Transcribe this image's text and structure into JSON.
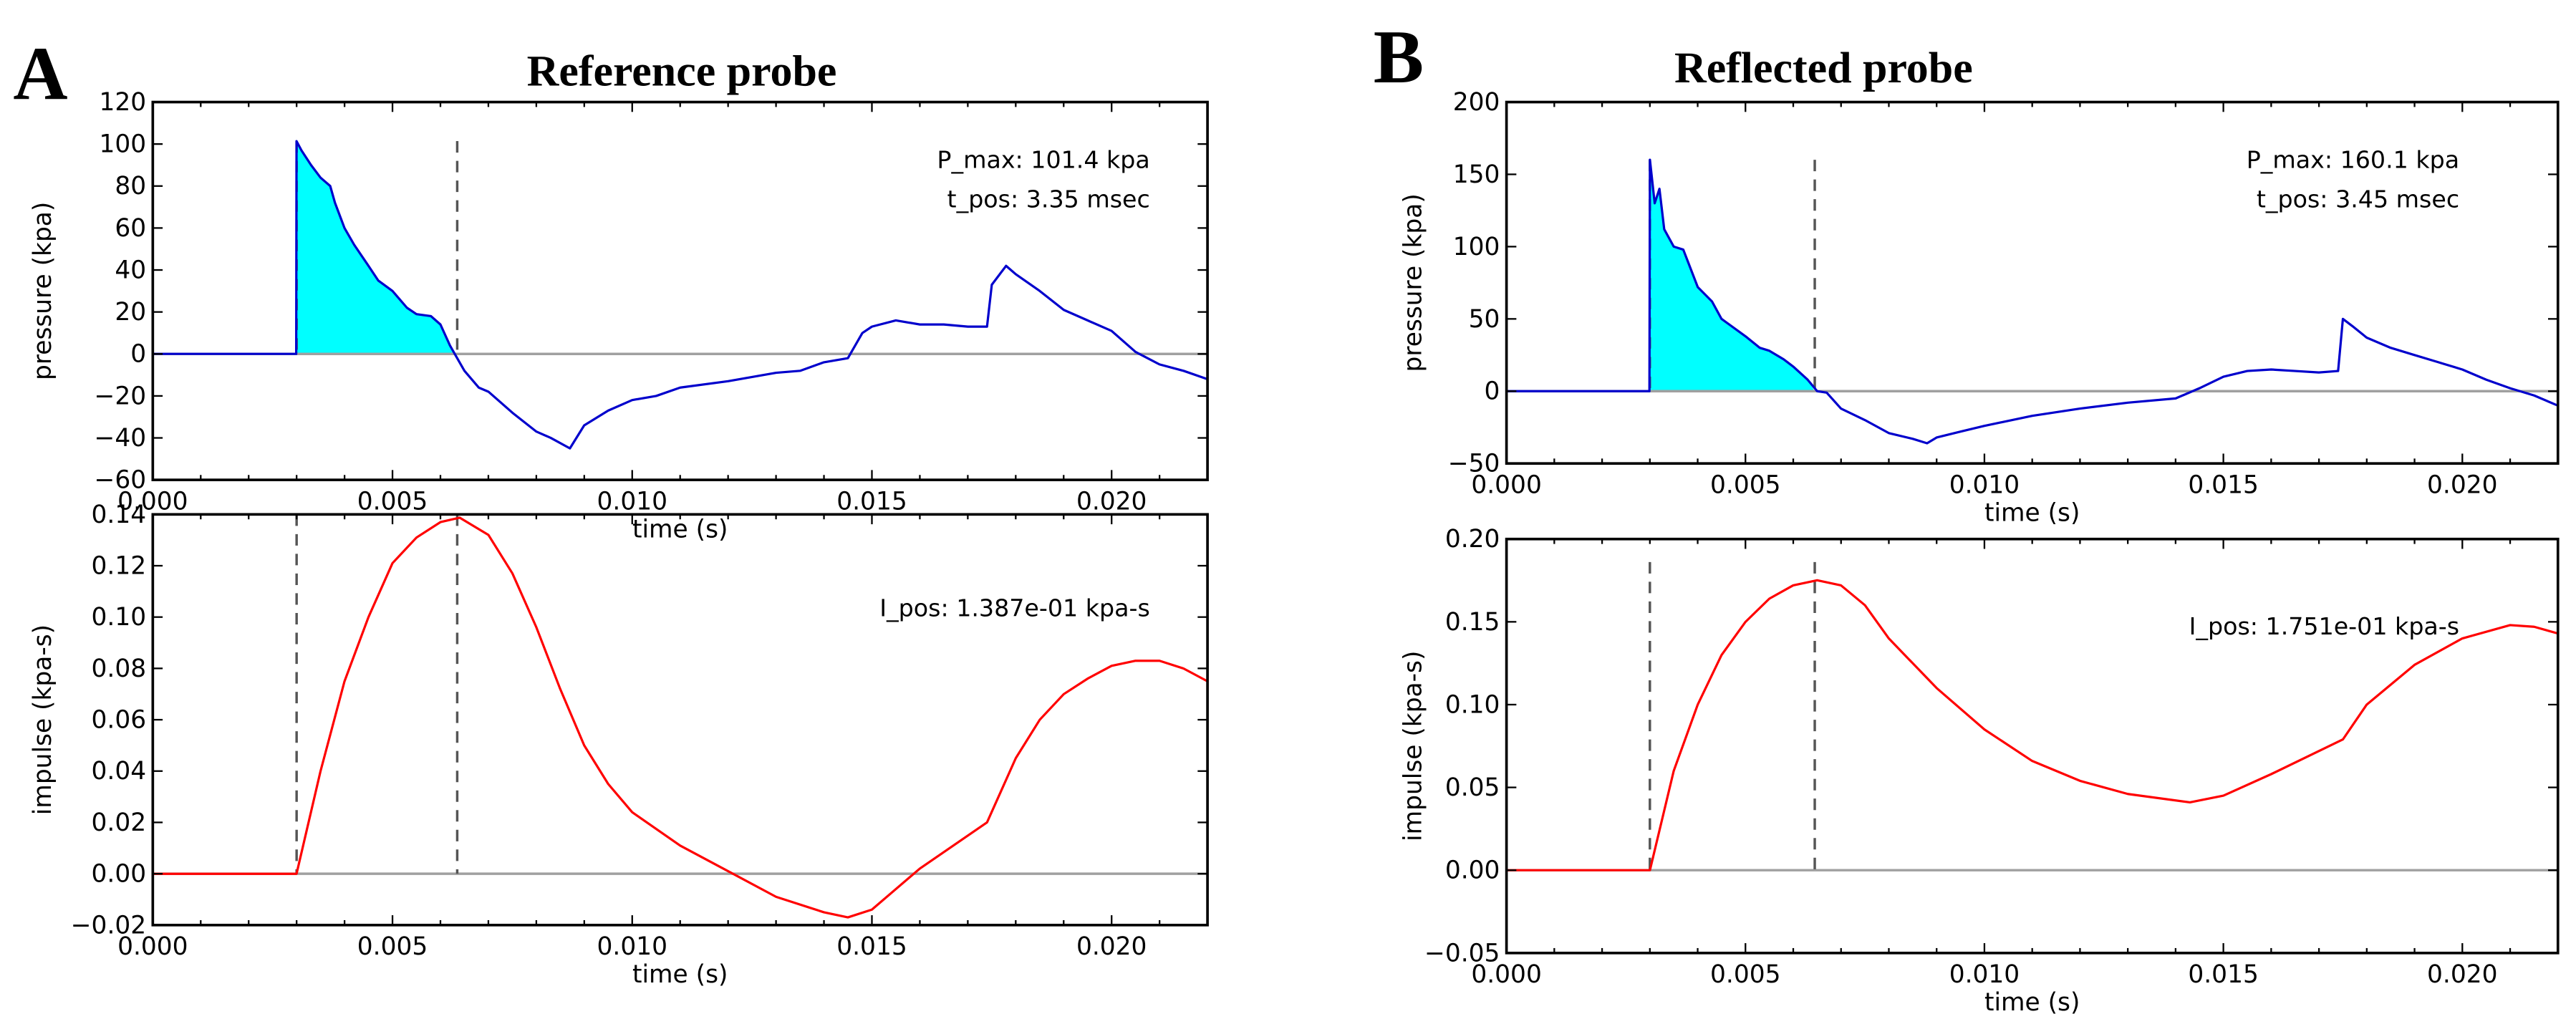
{
  "panels": [
    {
      "letter": "A",
      "title": "Reference probe",
      "colors": {
        "pressure": "#0000cc",
        "fill": "#00ffff",
        "impulse": "#ff0000",
        "zero": "#a0a0a0",
        "dashed": "#555555"
      },
      "dashed_x": [
        0.003,
        0.00635
      ],
      "chart_data": [
        {
          "type": "line",
          "xlabel": "time (s)",
          "ylabel": "pressure (kpa)",
          "xlim": [
            0,
            0.022
          ],
          "ylim": [
            -60,
            120
          ],
          "xticks": [
            "0.000",
            "0.005",
            "0.010",
            "0.015",
            "0.020"
          ],
          "yticks": [
            "−60",
            "−40",
            "−20",
            "0",
            "20",
            "40",
            "60",
            "80",
            "100",
            "120"
          ],
          "yticks_values": [
            -60,
            -40,
            -20,
            0,
            20,
            40,
            60,
            80,
            100,
            120
          ],
          "annotations": [
            "P_max: 101.4 kpa",
            "t_pos: 3.35 msec"
          ],
          "fill_range": [
            0.003,
            0.00635
          ],
          "points": [
            [
              0,
              0
            ],
            [
              0.00299,
              0
            ],
            [
              0.003,
              101.4
            ],
            [
              0.0031,
              97
            ],
            [
              0.0033,
              90
            ],
            [
              0.0035,
              84
            ],
            [
              0.0037,
              80
            ],
            [
              0.0038,
              72
            ],
            [
              0.004,
              60
            ],
            [
              0.0042,
              52
            ],
            [
              0.0045,
              42
            ],
            [
              0.0047,
              35
            ],
            [
              0.005,
              30
            ],
            [
              0.0053,
              22
            ],
            [
              0.0055,
              19
            ],
            [
              0.0058,
              18
            ],
            [
              0.006,
              14
            ],
            [
              0.0062,
              4
            ],
            [
              0.0063,
              0
            ],
            [
              0.0065,
              -8
            ],
            [
              0.0068,
              -16
            ],
            [
              0.007,
              -18
            ],
            [
              0.0075,
              -28
            ],
            [
              0.008,
              -37
            ],
            [
              0.0083,
              -40
            ],
            [
              0.0087,
              -45
            ],
            [
              0.009,
              -34
            ],
            [
              0.0095,
              -27
            ],
            [
              0.01,
              -22
            ],
            [
              0.0105,
              -20
            ],
            [
              0.011,
              -16
            ],
            [
              0.012,
              -13
            ],
            [
              0.013,
              -9
            ],
            [
              0.0135,
              -8
            ],
            [
              0.014,
              -4
            ],
            [
              0.0145,
              -2
            ],
            [
              0.0148,
              10
            ],
            [
              0.015,
              13
            ],
            [
              0.0155,
              16
            ],
            [
              0.016,
              14
            ],
            [
              0.0165,
              14
            ],
            [
              0.017,
              13
            ],
            [
              0.0174,
              13
            ],
            [
              0.0175,
              33
            ],
            [
              0.0178,
              42
            ],
            [
              0.018,
              38
            ],
            [
              0.0185,
              30
            ],
            [
              0.019,
              21
            ],
            [
              0.0195,
              16
            ],
            [
              0.02,
              11
            ],
            [
              0.0205,
              1
            ],
            [
              0.021,
              -5
            ],
            [
              0.0215,
              -8
            ],
            [
              0.022,
              -12
            ]
          ]
        },
        {
          "type": "line",
          "xlabel": "time (s)",
          "ylabel": "impulse (kpa-s)",
          "xlim": [
            0,
            0.022
          ],
          "ylim": [
            -0.02,
            0.14
          ],
          "xticks": [
            "0.000",
            "0.005",
            "0.010",
            "0.015",
            "0.020"
          ],
          "yticks": [
            "−0.02",
            "0.00",
            "0.02",
            "0.04",
            "0.06",
            "0.08",
            "0.10",
            "0.12",
            "0.14"
          ],
          "yticks_values": [
            -0.02,
            0,
            0.02,
            0.04,
            0.06,
            0.08,
            0.1,
            0.12,
            0.14
          ],
          "annotations": [
            "I_pos: 1.387e-01 kpa-s"
          ],
          "points": [
            [
              0,
              0
            ],
            [
              0.003,
              0
            ],
            [
              0.0035,
              0.04
            ],
            [
              0.004,
              0.075
            ],
            [
              0.0045,
              0.1
            ],
            [
              0.005,
              0.121
            ],
            [
              0.0055,
              0.131
            ],
            [
              0.006,
              0.137
            ],
            [
              0.0064,
              0.1387
            ],
            [
              0.007,
              0.132
            ],
            [
              0.0075,
              0.117
            ],
            [
              0.008,
              0.096
            ],
            [
              0.0085,
              0.072
            ],
            [
              0.009,
              0.05
            ],
            [
              0.0095,
              0.035
            ],
            [
              0.01,
              0.024
            ],
            [
              0.011,
              0.011
            ],
            [
              0.012,
              0.001
            ],
            [
              0.013,
              -0.009
            ],
            [
              0.014,
              -0.015
            ],
            [
              0.0145,
              -0.017
            ],
            [
              0.015,
              -0.014
            ],
            [
              0.0155,
              -0.006
            ],
            [
              0.016,
              0.002
            ],
            [
              0.0174,
              0.02
            ],
            [
              0.018,
              0.045
            ],
            [
              0.0185,
              0.06
            ],
            [
              0.019,
              0.07
            ],
            [
              0.0195,
              0.076
            ],
            [
              0.02,
              0.081
            ],
            [
              0.0205,
              0.083
            ],
            [
              0.021,
              0.083
            ],
            [
              0.0215,
              0.08
            ],
            [
              0.022,
              0.075
            ]
          ]
        }
      ]
    },
    {
      "letter": "B",
      "title": "Reflected probe",
      "colors": {
        "pressure": "#0000cc",
        "fill": "#00ffff",
        "impulse": "#ff0000",
        "zero": "#a0a0a0",
        "dashed": "#555555"
      },
      "dashed_x": [
        0.003,
        0.00645
      ],
      "chart_data": [
        {
          "type": "line",
          "xlabel": "time (s)",
          "ylabel": "pressure (kpa)",
          "xlim": [
            0,
            0.022
          ],
          "ylim": [
            -50,
            200
          ],
          "xticks": [
            "0.000",
            "0.005",
            "0.010",
            "0.015",
            "0.020"
          ],
          "yticks": [
            "−50",
            "0",
            "50",
            "100",
            "150",
            "200"
          ],
          "yticks_values": [
            -50,
            0,
            50,
            100,
            150,
            200
          ],
          "annotations": [
            "P_max: 160.1 kpa",
            "t_pos: 3.45 msec"
          ],
          "fill_range": [
            0.003,
            0.00645
          ],
          "points": [
            [
              0,
              0
            ],
            [
              0.00299,
              0
            ],
            [
              0.003,
              160.1
            ],
            [
              0.0031,
              130
            ],
            [
              0.0032,
              140
            ],
            [
              0.0033,
              112
            ],
            [
              0.0035,
              100
            ],
            [
              0.0037,
              98
            ],
            [
              0.004,
              72
            ],
            [
              0.0043,
              62
            ],
            [
              0.0045,
              50
            ],
            [
              0.005,
              38
            ],
            [
              0.0053,
              30
            ],
            [
              0.0055,
              28
            ],
            [
              0.0058,
              22
            ],
            [
              0.006,
              17
            ],
            [
              0.0063,
              8
            ],
            [
              0.0065,
              0
            ],
            [
              0.0067,
              -1
            ],
            [
              0.007,
              -12
            ],
            [
              0.0075,
              -20
            ],
            [
              0.008,
              -29
            ],
            [
              0.0085,
              -33
            ],
            [
              0.0088,
              -36
            ],
            [
              0.009,
              -32
            ],
            [
              0.0095,
              -28
            ],
            [
              0.01,
              -24
            ],
            [
              0.011,
              -17
            ],
            [
              0.012,
              -12
            ],
            [
              0.013,
              -8
            ],
            [
              0.014,
              -5
            ],
            [
              0.0145,
              2
            ],
            [
              0.015,
              10
            ],
            [
              0.0155,
              14
            ],
            [
              0.016,
              15
            ],
            [
              0.0165,
              14
            ],
            [
              0.017,
              13
            ],
            [
              0.0174,
              14
            ],
            [
              0.0175,
              50
            ],
            [
              0.0177,
              45
            ],
            [
              0.018,
              37
            ],
            [
              0.0185,
              30
            ],
            [
              0.019,
              25
            ],
            [
              0.0195,
              20
            ],
            [
              0.02,
              15
            ],
            [
              0.0205,
              8
            ],
            [
              0.021,
              2
            ],
            [
              0.0215,
              -3
            ],
            [
              0.022,
              -10
            ]
          ]
        },
        {
          "type": "line",
          "xlabel": "time (s)",
          "ylabel": "impulse (kpa-s)",
          "xlim": [
            0,
            0.022
          ],
          "ylim": [
            -0.05,
            0.2
          ],
          "xticks": [
            "0.000",
            "0.005",
            "0.010",
            "0.015",
            "0.020"
          ],
          "yticks": [
            "−0.05",
            "0.00",
            "0.05",
            "0.10",
            "0.15",
            "0.20"
          ],
          "yticks_values": [
            -0.05,
            0,
            0.05,
            0.1,
            0.15,
            0.2
          ],
          "annotations": [
            "I_pos: 1.751e-01 kpa-s"
          ],
          "points": [
            [
              0,
              0
            ],
            [
              0.003,
              0
            ],
            [
              0.0035,
              0.06
            ],
            [
              0.004,
              0.1
            ],
            [
              0.0045,
              0.13
            ],
            [
              0.005,
              0.15
            ],
            [
              0.0055,
              0.164
            ],
            [
              0.006,
              0.172
            ],
            [
              0.0065,
              0.1751
            ],
            [
              0.007,
              0.172
            ],
            [
              0.0075,
              0.16
            ],
            [
              0.008,
              0.14
            ],
            [
              0.009,
              0.11
            ],
            [
              0.01,
              0.085
            ],
            [
              0.011,
              0.066
            ],
            [
              0.012,
              0.054
            ],
            [
              0.013,
              0.046
            ],
            [
              0.0143,
              0.041
            ],
            [
              0.015,
              0.045
            ],
            [
              0.016,
              0.058
            ],
            [
              0.0175,
              0.079
            ],
            [
              0.018,
              0.1
            ],
            [
              0.019,
              0.124
            ],
            [
              0.02,
              0.14
            ],
            [
              0.021,
              0.148
            ],
            [
              0.0215,
              0.147
            ],
            [
              0.022,
              0.143
            ]
          ]
        }
      ]
    }
  ]
}
